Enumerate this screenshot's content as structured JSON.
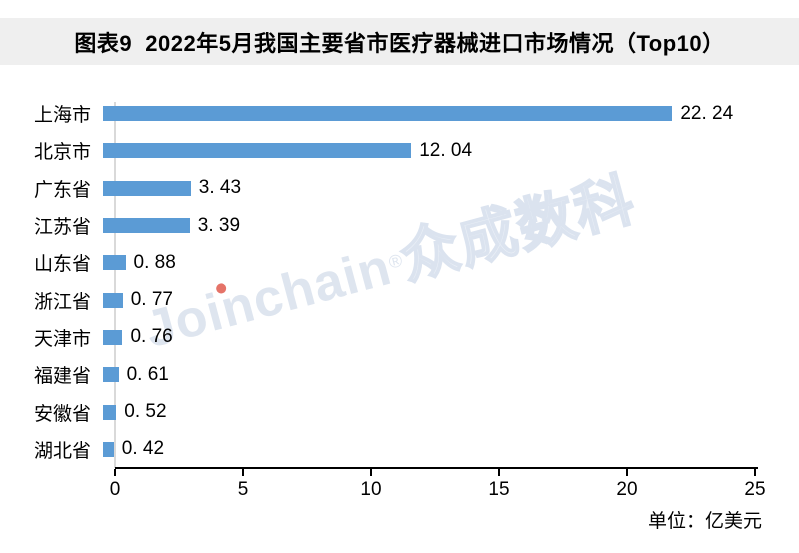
{
  "header": {
    "title": "图表9  2022年5月我国主要省市医疗器械进口市场情况（Top10）"
  },
  "chart_data": {
    "type": "bar",
    "orientation": "horizontal",
    "title": "2022年5月我国主要省市医疗器械进口市场情况（Top10）",
    "figure_label": "图表9",
    "categories": [
      "上海市",
      "北京市",
      "广东省",
      "江苏省",
      "山东省",
      "浙江省",
      "天津市",
      "福建省",
      "安徽省",
      "湖北省"
    ],
    "values": [
      22.24,
      12.04,
      3.43,
      3.39,
      0.88,
      0.77,
      0.76,
      0.61,
      0.52,
      0.42
    ],
    "value_labels": [
      "22. 24",
      "12. 04",
      "3. 43",
      "3. 39",
      "0. 88",
      "0. 77",
      "0. 76",
      "0. 61",
      "0. 52",
      "0. 42"
    ],
    "xlabel": "",
    "ylabel": "",
    "xlim": [
      0,
      25
    ],
    "x_ticks": [
      0,
      5,
      10,
      15,
      20,
      25
    ],
    "grid": false,
    "legend": "none",
    "unit_label": "单位：亿美元",
    "bar_color": "#5b9bd5"
  },
  "watermark": {
    "latin": "Joinchain",
    "reg": "®",
    "cn": "众成数科"
  },
  "colors": {
    "title_bg": "#efefef",
    "bar": "#5b9bd5",
    "axis": "#000000",
    "gridline": "#d9d9d9",
    "watermark": "#dee5ef",
    "watermark_dot": "#e57368"
  }
}
